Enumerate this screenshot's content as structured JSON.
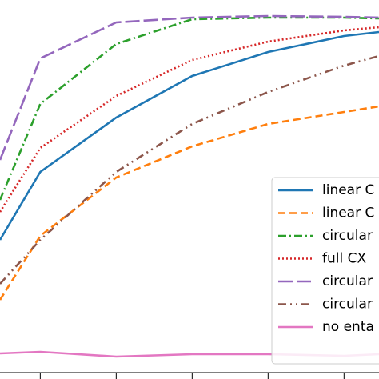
{
  "chart_data": {
    "type": "line",
    "x": [
      0.47,
      1,
      2,
      3,
      4,
      5,
      5.46
    ],
    "xlim": [
      0.47,
      5.46
    ],
    "ylim": [
      0,
      474
    ],
    "xticks": [
      1,
      2,
      3,
      4,
      5
    ],
    "series": [
      {
        "name": "linear C",
        "color": "#1f77b4",
        "dash": "",
        "values": [
          174,
          259,
          327,
          379,
          409,
          429,
          434
        ]
      },
      {
        "name": "linear C",
        "color": "#ff7f0e",
        "dash": "9,5",
        "values": [
          99,
          179,
          252,
          291,
          319,
          334,
          341
        ]
      },
      {
        "name": "circular",
        "color": "#2ca02c",
        "dash": "10,4,2,4",
        "values": [
          224,
          344,
          419,
          450,
          452,
          452,
          451
        ]
      },
      {
        "name": "full CX",
        "color": "#d62728",
        "dash": "2,3",
        "values": [
          209,
          289,
          354,
          399,
          422,
          436,
          440
        ]
      },
      {
        "name": "circular",
        "color": "#9467bd",
        "dash": "18,5",
        "values": [
          274,
          401,
          446,
          452,
          454,
          453,
          452
        ]
      },
      {
        "name": "circular",
        "color": "#8c564b",
        "dash": "10,5,2,5,2,5",
        "values": [
          119,
          174,
          259,
          319,
          359,
          392,
          404
        ]
      },
      {
        "name": "no enta",
        "color": "#e377c2",
        "dash": "",
        "values": [
          32,
          34,
          28,
          31,
          31,
          29,
          31
        ]
      }
    ]
  }
}
